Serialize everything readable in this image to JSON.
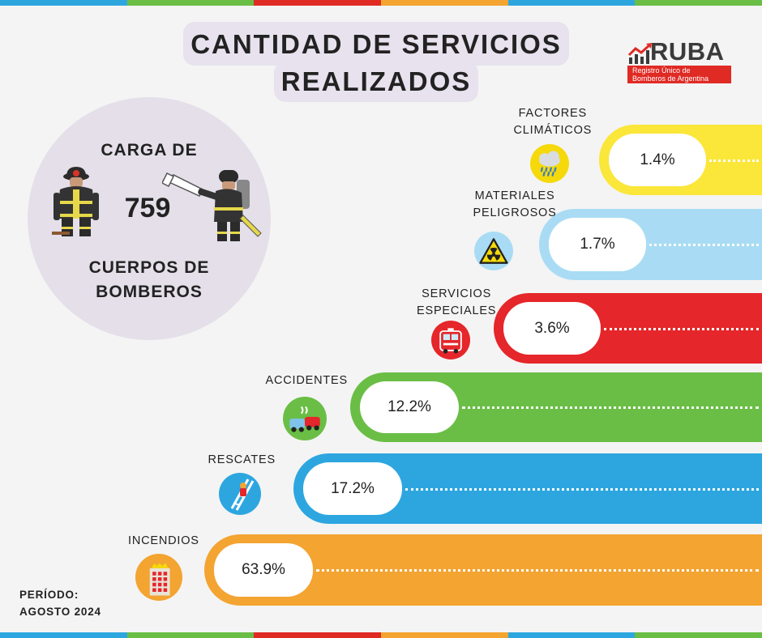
{
  "stripe_colors": [
    "#2da6e0",
    "#6abe45",
    "#e02a24",
    "#f3a431",
    "#2da6e0",
    "#6abe45"
  ],
  "title": {
    "line1": "CANTIDAD DE SERVICIOS",
    "line2": "REALIZADOS"
  },
  "logo": {
    "name": "RUBA",
    "subtitle_line1": "Registro Único de",
    "subtitle_line2": "Bomberos de Argentina"
  },
  "circle": {
    "top_text": "CARGA DE",
    "number": "759",
    "bottom_line1": "CUERPOS DE",
    "bottom_line2": "BOMBEROS"
  },
  "period": {
    "label": "PERÍODO:",
    "value": "AGOSTO 2024"
  },
  "chart_data": {
    "type": "bar",
    "title": "CANTIDAD DE SERVICIOS REALIZADOS",
    "unit": "%",
    "categories": [
      {
        "label_lines": [
          "FACTORES",
          "CLIMÁTICOS"
        ],
        "value": 1.4,
        "display": "1.4%",
        "color": "#fbe63a",
        "icon": "rain-cloud-icon"
      },
      {
        "label_lines": [
          "MATERIALES",
          "PELIGROSOS"
        ],
        "value": 1.7,
        "display": "1.7%",
        "color": "#a9dcf4",
        "icon": "radiation-icon"
      },
      {
        "label_lines": [
          "SERVICIOS",
          "ESPECIALES"
        ],
        "value": 3.6,
        "display": "3.6%",
        "color": "#e5262a",
        "icon": "fire-truck-icon"
      },
      {
        "label_lines": [
          "ACCIDENTES"
        ],
        "value": 12.2,
        "display": "12.2%",
        "color": "#6abe45",
        "icon": "car-crash-icon"
      },
      {
        "label_lines": [
          "RESCATES"
        ],
        "value": 17.2,
        "display": "17.2%",
        "color": "#2da6e0",
        "icon": "ladder-rescue-icon"
      },
      {
        "label_lines": [
          "INCENDIOS"
        ],
        "value": 63.9,
        "display": "63.9%",
        "color": "#f3a431",
        "icon": "burning-building-icon"
      }
    ]
  }
}
